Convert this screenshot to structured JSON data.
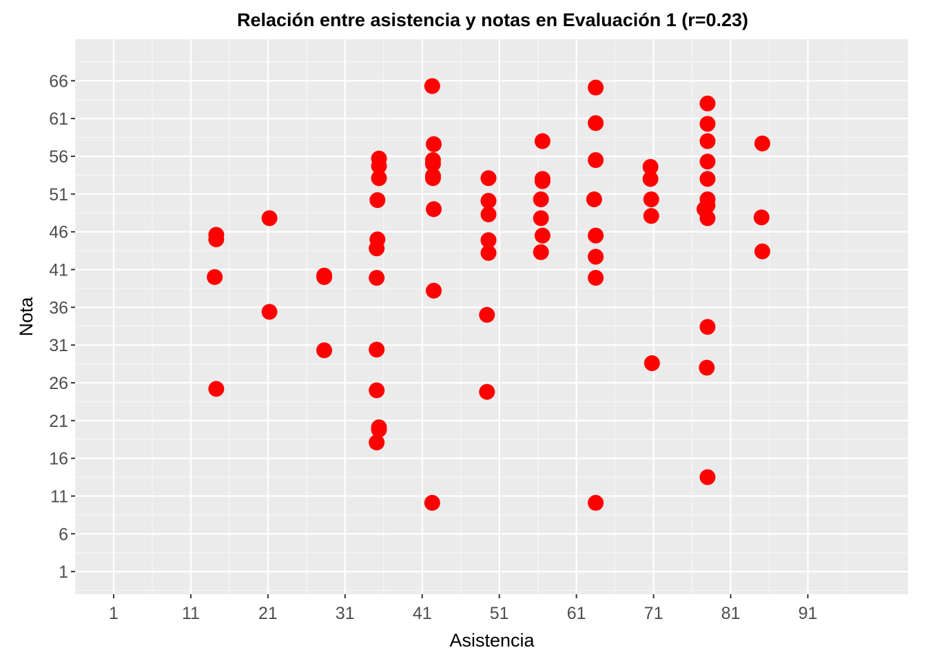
{
  "chart_data": {
    "type": "scatter",
    "title": "Relación entre asistencia y notas en Evaluación 1 (r=0.23)",
    "xlabel": "Asistencia",
    "ylabel": "Nota",
    "xlim": [
      -4,
      104
    ],
    "ylim": [
      -2,
      71.5
    ],
    "x_ticks": [
      1,
      11,
      21,
      31,
      41,
      51,
      61,
      71,
      81,
      91
    ],
    "y_ticks": [
      1,
      6,
      11,
      16,
      21,
      26,
      31,
      36,
      41,
      46,
      51,
      56,
      61,
      66
    ],
    "grid": true,
    "legend": "none",
    "point_color": "#ff0000",
    "panel_color": "#ebebeb",
    "points": [
      {
        "x": 14.3,
        "y": 45.6
      },
      {
        "x": 14.3,
        "y": 45.0
      },
      {
        "x": 14.1,
        "y": 40.0
      },
      {
        "x": 14.3,
        "y": 25.2
      },
      {
        "x": 21.2,
        "y": 47.8
      },
      {
        "x": 21.2,
        "y": 35.4
      },
      {
        "x": 28.3,
        "y": 40.2
      },
      {
        "x": 28.3,
        "y": 40.0
      },
      {
        "x": 28.3,
        "y": 30.3
      },
      {
        "x": 35.4,
        "y": 55.7
      },
      {
        "x": 35.4,
        "y": 54.7
      },
      {
        "x": 35.4,
        "y": 53.1
      },
      {
        "x": 35.2,
        "y": 50.2
      },
      {
        "x": 35.2,
        "y": 45.0
      },
      {
        "x": 35.1,
        "y": 43.8
      },
      {
        "x": 35.1,
        "y": 39.9
      },
      {
        "x": 35.1,
        "y": 30.4
      },
      {
        "x": 35.1,
        "y": 25.0
      },
      {
        "x": 35.4,
        "y": 20.1
      },
      {
        "x": 35.4,
        "y": 19.8
      },
      {
        "x": 35.1,
        "y": 18.1
      },
      {
        "x": 42.3,
        "y": 65.3
      },
      {
        "x": 42.5,
        "y": 57.6
      },
      {
        "x": 42.4,
        "y": 55.5
      },
      {
        "x": 42.4,
        "y": 55.0
      },
      {
        "x": 42.4,
        "y": 53.4
      },
      {
        "x": 42.4,
        "y": 53.1
      },
      {
        "x": 42.5,
        "y": 49.0
      },
      {
        "x": 42.5,
        "y": 38.2
      },
      {
        "x": 42.3,
        "y": 10.1
      },
      {
        "x": 49.6,
        "y": 53.1
      },
      {
        "x": 49.6,
        "y": 50.1
      },
      {
        "x": 49.6,
        "y": 48.3
      },
      {
        "x": 49.6,
        "y": 44.9
      },
      {
        "x": 49.6,
        "y": 43.2
      },
      {
        "x": 49.4,
        "y": 35.0
      },
      {
        "x": 49.4,
        "y": 24.8
      },
      {
        "x": 56.6,
        "y": 58.0
      },
      {
        "x": 56.6,
        "y": 53.0
      },
      {
        "x": 56.6,
        "y": 52.7
      },
      {
        "x": 56.4,
        "y": 50.3
      },
      {
        "x": 56.4,
        "y": 47.8
      },
      {
        "x": 56.6,
        "y": 45.5
      },
      {
        "x": 56.4,
        "y": 43.3
      },
      {
        "x": 63.5,
        "y": 65.1
      },
      {
        "x": 63.5,
        "y": 60.4
      },
      {
        "x": 63.5,
        "y": 55.5
      },
      {
        "x": 63.3,
        "y": 50.3
      },
      {
        "x": 63.5,
        "y": 45.5
      },
      {
        "x": 63.5,
        "y": 42.7
      },
      {
        "x": 63.5,
        "y": 39.9
      },
      {
        "x": 63.5,
        "y": 10.1
      },
      {
        "x": 70.6,
        "y": 54.6
      },
      {
        "x": 70.6,
        "y": 53.0
      },
      {
        "x": 70.7,
        "y": 50.3
      },
      {
        "x": 70.7,
        "y": 48.1
      },
      {
        "x": 70.8,
        "y": 28.6
      },
      {
        "x": 78.0,
        "y": 63.0
      },
      {
        "x": 78.0,
        "y": 60.3
      },
      {
        "x": 78.0,
        "y": 58.0
      },
      {
        "x": 78.0,
        "y": 55.3
      },
      {
        "x": 78.0,
        "y": 53.0
      },
      {
        "x": 78.0,
        "y": 50.3
      },
      {
        "x": 77.6,
        "y": 49.0
      },
      {
        "x": 78.0,
        "y": 49.5
      },
      {
        "x": 78.0,
        "y": 47.8
      },
      {
        "x": 78.0,
        "y": 33.4
      },
      {
        "x": 77.9,
        "y": 28.0
      },
      {
        "x": 78.0,
        "y": 13.5
      },
      {
        "x": 85.1,
        "y": 57.7
      },
      {
        "x": 85.0,
        "y": 47.9
      },
      {
        "x": 85.1,
        "y": 43.4
      }
    ]
  }
}
